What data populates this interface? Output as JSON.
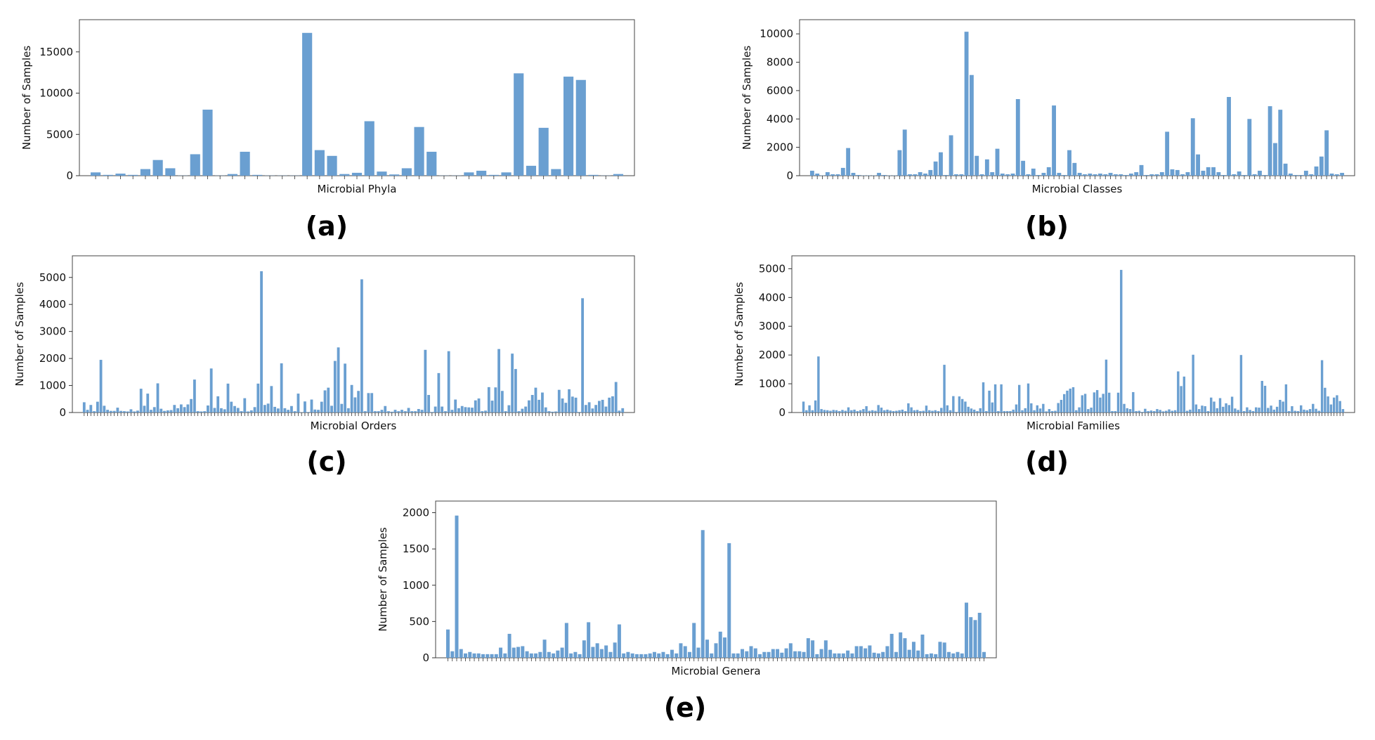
{
  "chart_data": [
    {
      "type": "bar",
      "panel_label": "(a)",
      "xlabel": "Microbial Phyla",
      "ylabel": "Number of Samples",
      "yticks": [
        0,
        5000,
        10000,
        15000
      ],
      "ylim": [
        0,
        18900
      ],
      "color": "#6a9fd1",
      "values": [
        400,
        100,
        250,
        100,
        800,
        1900,
        900,
        20,
        2600,
        8000,
        20,
        200,
        2900,
        100,
        20,
        20,
        20,
        17300,
        3100,
        2400,
        200,
        350,
        6600,
        500,
        150,
        900,
        5900,
        2900,
        20,
        20,
        400,
        600,
        100,
        400,
        12400,
        1200,
        5800,
        800,
        12000,
        11600,
        100,
        20,
        200
      ]
    },
    {
      "type": "bar",
      "panel_label": "(b)",
      "xlabel": "Microbial Classes",
      "ylabel": "Number of Samples",
      "yticks": [
        0,
        2000,
        4000,
        6000,
        8000,
        10000
      ],
      "ylim": [
        0,
        11000
      ],
      "color": "#6a9fd1",
      "values": [
        350,
        150,
        20,
        250,
        100,
        100,
        550,
        1950,
        200,
        50,
        20,
        20,
        20,
        200,
        50,
        20,
        20,
        1800,
        3250,
        100,
        100,
        250,
        150,
        400,
        1000,
        1650,
        50,
        2850,
        100,
        100,
        10150,
        7100,
        1400,
        100,
        1150,
        250,
        1900,
        150,
        100,
        150,
        5400,
        1050,
        100,
        500,
        50,
        200,
        600,
        4950,
        200,
        50,
        1800,
        900,
        200,
        100,
        150,
        100,
        150,
        100,
        200,
        100,
        100,
        50,
        150,
        250,
        750,
        50,
        100,
        100,
        250,
        3100,
        450,
        400,
        100,
        250,
        4050,
        1500,
        350,
        600,
        600,
        250,
        50,
        5550,
        100,
        300,
        50,
        4000,
        100,
        350,
        50,
        4900,
        2300,
        4650,
        850,
        150,
        50,
        50,
        350,
        100,
        650,
        1350,
        3200,
        150,
        100,
        200
      ]
    },
    {
      "type": "bar",
      "panel_label": "(c)",
      "xlabel": "Microbial Orders",
      "ylabel": "Number of Samples",
      "yticks": [
        0,
        1000,
        2000,
        3000,
        4000,
        5000
      ],
      "ylim": [
        0,
        5800
      ],
      "color": "#6a9fd1",
      "values": [
        380,
        100,
        280,
        50,
        400,
        1950,
        250,
        100,
        60,
        60,
        180,
        60,
        50,
        40,
        120,
        40,
        70,
        880,
        250,
        700,
        100,
        200,
        1080,
        140,
        60,
        80,
        90,
        280,
        160,
        300,
        200,
        300,
        500,
        1220,
        50,
        40,
        50,
        260,
        1630,
        170,
        600,
        160,
        120,
        1070,
        400,
        240,
        170,
        50,
        530,
        40,
        80,
        200,
        1070,
        5230,
        280,
        330,
        980,
        210,
        150,
        1820,
        160,
        100,
        240,
        50,
        700,
        10,
        410,
        20,
        480,
        110,
        100,
        400,
        820,
        920,
        250,
        1910,
        2410,
        320,
        1810,
        160,
        1020,
        560,
        800,
        4930,
        50,
        720,
        720,
        50,
        50,
        100,
        240,
        50,
        30,
        100,
        50,
        100,
        50,
        170,
        50,
        50,
        130,
        100,
        2320,
        650,
        20,
        220,
        1460,
        220,
        50,
        2270,
        100,
        480,
        160,
        240,
        200,
        190,
        180,
        450,
        520,
        50,
        70,
        940,
        440,
        930,
        2350,
        800,
        50,
        270,
        2180,
        1610,
        50,
        140,
        220,
        450,
        650,
        920,
        470,
        740,
        190,
        50,
        30,
        40,
        840,
        520,
        360,
        860,
        590,
        550,
        20,
        4230,
        280,
        380,
        150,
        280,
        430,
        470,
        220,
        550,
        600,
        1130,
        70,
        160
      ]
    },
    {
      "type": "bar",
      "panel_label": "(d)",
      "xlabel": "Microbial Families",
      "ylabel": "Number of Samples",
      "yticks": [
        0,
        1000,
        2000,
        3000,
        4000,
        5000
      ],
      "ylim": [
        0,
        5450
      ],
      "color": "#6a9fd1",
      "values": [
        380,
        80,
        250,
        80,
        420,
        1950,
        120,
        90,
        80,
        60,
        90,
        80,
        50,
        90,
        60,
        180,
        80,
        100,
        50,
        80,
        120,
        220,
        60,
        80,
        60,
        260,
        170,
        80,
        100,
        70,
        50,
        60,
        80,
        100,
        50,
        320,
        180,
        80,
        90,
        50,
        60,
        240,
        80,
        60,
        80,
        50,
        160,
        1660,
        250,
        80,
        570,
        20,
        560,
        470,
        380,
        200,
        140,
        100,
        50,
        150,
        1050,
        50,
        760,
        350,
        980,
        50,
        980,
        50,
        50,
        50,
        100,
        280,
        960,
        80,
        150,
        1010,
        320,
        80,
        250,
        140,
        300,
        40,
        120,
        50,
        60,
        330,
        440,
        640,
        760,
        830,
        880,
        80,
        180,
        600,
        650,
        120,
        170,
        700,
        780,
        520,
        650,
        1840,
        690,
        50,
        50,
        690,
        4960,
        300,
        150,
        120,
        710,
        50,
        60,
        20,
        130,
        50,
        70,
        50,
        120,
        90,
        40,
        60,
        110,
        60,
        80,
        1430,
        920,
        1250,
        60,
        100,
        2010,
        280,
        120,
        240,
        220,
        50,
        520,
        380,
        150,
        500,
        200,
        320,
        260,
        550,
        140,
        90,
        2000,
        50,
        180,
        90,
        50,
        180,
        170,
        1100,
        930,
        160,
        240,
        100,
        200,
        440,
        380,
        980,
        50,
        220,
        60,
        50,
        250,
        100,
        80,
        120,
        300,
        130,
        60,
        1820,
        860,
        560,
        280,
        520,
        600,
        400,
        120
      ]
    },
    {
      "type": "bar",
      "panel_label": "(e)",
      "xlabel": "Microbial Genera",
      "ylabel": "Number of Samples",
      "yticks": [
        0,
        500,
        1000,
        1500,
        2000
      ],
      "ylim": [
        0,
        2160
      ],
      "color": "#6a9fd1",
      "values": [
        390,
        90,
        1960,
        120,
        60,
        80,
        60,
        60,
        50,
        50,
        50,
        50,
        140,
        60,
        330,
        140,
        150,
        160,
        90,
        60,
        60,
        80,
        250,
        80,
        60,
        100,
        140,
        480,
        60,
        80,
        50,
        240,
        490,
        150,
        200,
        120,
        170,
        80,
        210,
        460,
        60,
        80,
        60,
        50,
        50,
        50,
        60,
        80,
        60,
        80,
        50,
        110,
        60,
        200,
        160,
        80,
        480,
        140,
        1760,
        250,
        60,
        200,
        360,
        280,
        1580,
        60,
        60,
        120,
        90,
        160,
        130,
        50,
        80,
        80,
        120,
        120,
        70,
        130,
        200,
        90,
        90,
        80,
        270,
        240,
        50,
        120,
        240,
        110,
        60,
        60,
        60,
        100,
        60,
        160,
        160,
        130,
        170,
        70,
        60,
        80,
        160,
        330,
        80,
        350,
        270,
        110,
        220,
        100,
        320,
        50,
        60,
        50,
        220,
        210,
        80,
        60,
        80,
        60,
        760,
        560,
        520,
        620,
        80
      ]
    }
  ]
}
